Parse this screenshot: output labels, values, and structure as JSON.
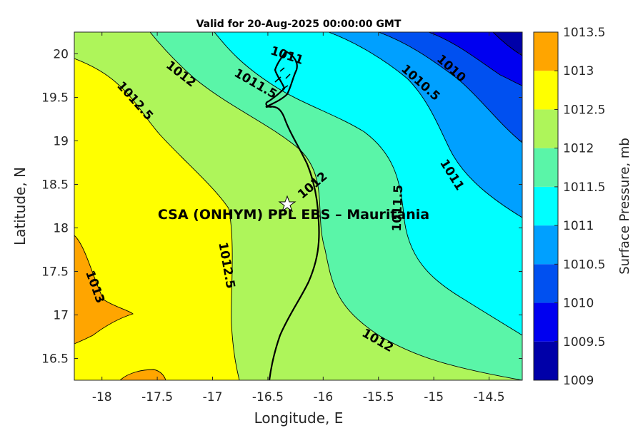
{
  "title": "Valid for 20-Aug-2025 00:00:00 GMT",
  "xlabel": "Longitude, E",
  "ylabel": "Latitude, N",
  "colorbar_label": "Surface Pressure, mb",
  "site_label": "CSA (ONHYM) PPL EBS  – Mauritania",
  "x_ticks": [
    "-18",
    "-17.5",
    "-17",
    "-16.5",
    "-16",
    "-15.5",
    "-15",
    "-14.5"
  ],
  "y_ticks": [
    "20",
    "19.5",
    "19",
    "18.5",
    "18",
    "17.5",
    "17",
    "16.5"
  ],
  "colorbar_ticks": [
    "1013.5",
    "1013",
    "1012.5",
    "1012",
    "1011.5",
    "1011",
    "1010.5",
    "1010",
    "1009.5",
    "1009"
  ],
  "contour_labels": [
    {
      "text": "1011"
    },
    {
      "text": "1010"
    },
    {
      "text": "1012"
    },
    {
      "text": "1011.5"
    },
    {
      "text": "1010.5"
    },
    {
      "text": "1012.5"
    },
    {
      "text": "1011"
    },
    {
      "text": "1012"
    },
    {
      "text": "1011.5"
    },
    {
      "text": "1012.5"
    },
    {
      "text": "1013"
    },
    {
      "text": "1012"
    }
  ],
  "colors": {
    "1009": "#0000a8",
    "1009.5": "#0000f0",
    "1010": "#0050f0",
    "1010.5": "#00a0ff",
    "1011": "#00ffff",
    "1011.5": "#5af5a8",
    "1012": "#aef55a",
    "1012.5": "#ffff00",
    "1013": "#ffa500",
    "1013.5": "#ff5a00"
  }
}
